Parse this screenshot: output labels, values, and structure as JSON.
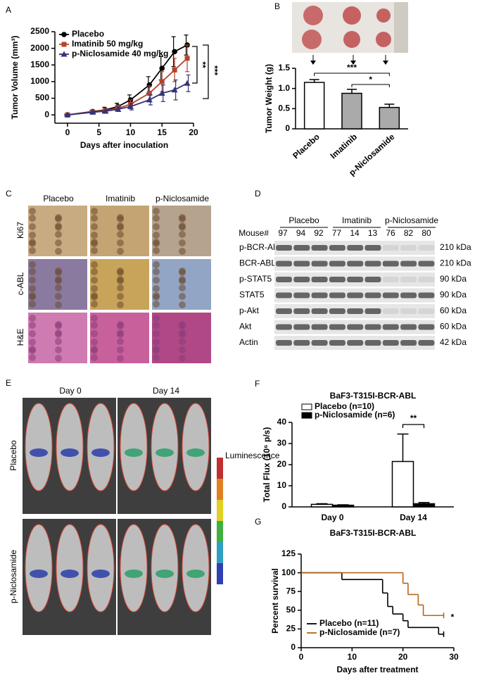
{
  "chart_data": [
    {
      "type": "line",
      "label": "A",
      "x_label": "Days after inoculation",
      "y_label": "Tumor Volume (mm³)",
      "x": [
        0,
        4,
        6,
        8,
        10,
        13,
        15,
        17,
        19
      ],
      "series": [
        {
          "name": "Placebo",
          "color": "#000000",
          "marker": "circle",
          "values": [
            0,
            100,
            150,
            250,
            450,
            900,
            1400,
            1900,
            2100
          ],
          "errors": [
            20,
            40,
            80,
            100,
            150,
            250,
            350,
            450,
            300
          ]
        },
        {
          "name": "Imatinib 50 mg/kg",
          "color": "#b5442a",
          "marker": "square",
          "values": [
            0,
            90,
            130,
            200,
            320,
            650,
            1000,
            1350,
            1700
          ],
          "errors": [
            20,
            40,
            70,
            90,
            130,
            220,
            300,
            350,
            400
          ]
        },
        {
          "name": "p-Niclosamide 40 mg/kg",
          "color": "#33337a",
          "marker": "triangle",
          "values": [
            0,
            80,
            110,
            170,
            250,
            450,
            650,
            750,
            950
          ],
          "errors": [
            20,
            30,
            50,
            70,
            100,
            150,
            250,
            300,
            250
          ]
        }
      ],
      "xlim": [
        -2,
        20
      ],
      "xticks": [
        0,
        5,
        10,
        15,
        20
      ],
      "ylim": [
        -250,
        2500
      ],
      "yticks": [
        0,
        500,
        1000,
        1500,
        2000,
        2500
      ],
      "annotations": [
        "**",
        "***"
      ]
    },
    {
      "type": "bar",
      "label": "B",
      "y_label": "Tumor Weight (g)",
      "categories": [
        "Placebo",
        "Imatinib",
        "p-Niclosamide"
      ],
      "values": [
        1.15,
        0.88,
        0.53
      ],
      "errors": [
        0.07,
        0.1,
        0.08
      ],
      "colors": [
        "#ffffff",
        "#aaaaaa",
        "#aaaaaa"
      ],
      "ylim": [
        0,
        1.5
      ],
      "yticks": [
        0,
        0.5,
        {
          "value": 1,
          "label": "1.0"
        },
        1.5
      ],
      "annotations": [
        "***",
        "*"
      ]
    },
    {
      "type": "grouped_bar",
      "label": "F",
      "title": "BaF3-T315I-BCR-ABL",
      "y_label": "Total Flux (10⁶ p/s)",
      "categories": [
        "Day 0",
        "Day 14"
      ],
      "series": [
        {
          "name": "Placebo (n=10)",
          "color": "#ffffff",
          "values": [
            1.2,
            21.5
          ],
          "errors": [
            0.3,
            13
          ]
        },
        {
          "name": "p-Niclosamide (n=6)",
          "color": "#000000",
          "values": [
            0.8,
            1.5
          ],
          "errors": [
            0.2,
            0.6
          ]
        }
      ],
      "ylim": [
        0,
        40
      ],
      "yticks": [
        0,
        10,
        20,
        30,
        40
      ],
      "annotations": [
        "**"
      ]
    },
    {
      "type": "step",
      "label": "G",
      "title": "BaF3-T315I-BCR-ABL",
      "x_label": "Days after treatment",
      "y_label": "Percent survival",
      "series": [
        {
          "name": "Placebo (n=11)",
          "color": "#000000",
          "x": [
            0,
            8,
            16,
            17,
            18,
            20,
            21,
            27,
            28
          ],
          "values": [
            100,
            91,
            73,
            55,
            45,
            36,
            27,
            18,
            18
          ]
        },
        {
          "name": "p-Niclosamide (n=7)",
          "color": "#b5651d",
          "x": [
            0,
            20,
            21,
            23,
            24,
            28
          ],
          "values": [
            100,
            86,
            71,
            57,
            43,
            43
          ]
        }
      ],
      "xlim": [
        0,
        30
      ],
      "xticks": [
        0,
        10,
        20,
        30
      ],
      "ylim": [
        0,
        125
      ],
      "yticks": [
        0,
        25,
        50,
        75,
        100,
        125
      ],
      "annotations": [
        "*"
      ]
    }
  ],
  "panel_c": {
    "label": "C",
    "columns": [
      "Placebo",
      "Imatinib",
      "p-Niclosamide"
    ],
    "rows": [
      "Ki67",
      "c-ABL",
      "H&E"
    ]
  },
  "panel_d": {
    "label": "D",
    "groups": [
      "Placebo",
      "Imatinib",
      "p-Niclosamide"
    ],
    "mouse_label": "Mouse#",
    "mice": [
      "97",
      "94",
      "92",
      "77",
      "14",
      "13",
      "76",
      "82",
      "80"
    ],
    "rows": [
      {
        "name": "p-BCR-ABL",
        "size": "210 kDa"
      },
      {
        "name": "BCR-ABL",
        "size": "210 kDa"
      },
      {
        "name": "p-STAT5",
        "size": "90 kDa"
      },
      {
        "name": "STAT5",
        "size": "90 kDa"
      },
      {
        "name": "p-Akt",
        "size": "60 kDa"
      },
      {
        "name": "Akt",
        "size": "60 kDa"
      },
      {
        "name": "Actin",
        "size": "42 kDa"
      }
    ]
  },
  "panel_e": {
    "label": "E",
    "columns": [
      "Day 0",
      "Day 14"
    ],
    "rows": [
      "Placebo",
      "p-Niclosamide"
    ],
    "scale_title": "Luminescence"
  }
}
